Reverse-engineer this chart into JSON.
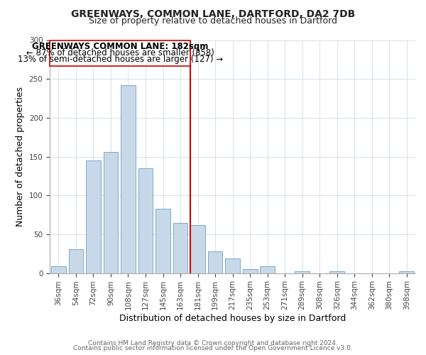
{
  "title": "GREENWAYS, COMMON LANE, DARTFORD, DA2 7DB",
  "subtitle": "Size of property relative to detached houses in Dartford",
  "xlabel": "Distribution of detached houses by size in Dartford",
  "ylabel": "Number of detached properties",
  "bar_color": "#c8d8e8",
  "bar_edge_color": "#7aaac8",
  "categories": [
    "36sqm",
    "54sqm",
    "72sqm",
    "90sqm",
    "108sqm",
    "127sqm",
    "145sqm",
    "163sqm",
    "181sqm",
    "199sqm",
    "217sqm",
    "235sqm",
    "253sqm",
    "271sqm",
    "289sqm",
    "308sqm",
    "326sqm",
    "344sqm",
    "362sqm",
    "380sqm",
    "398sqm"
  ],
  "values": [
    9,
    31,
    145,
    156,
    242,
    135,
    83,
    65,
    62,
    28,
    19,
    5,
    9,
    0,
    2,
    0,
    2,
    0,
    0,
    0,
    2
  ],
  "vline_color": "#cc0000",
  "annotation_title": "GREENWAYS COMMON LANE: 182sqm",
  "annotation_line1": "← 87% of detached houses are smaller (858)",
  "annotation_line2": "13% of semi-detached houses are larger (127) →",
  "annotation_box_color": "#ffffff",
  "annotation_box_edge_color": "#cc0000",
  "footer1": "Contains HM Land Registry data © Crown copyright and database right 2024.",
  "footer2": "Contains public sector information licensed under the Open Government Licence v3.0.",
  "ylim": [
    0,
    300
  ],
  "title_fontsize": 10,
  "subtitle_fontsize": 9,
  "annotation_fontsize": 8.5,
  "axis_label_fontsize": 9,
  "tick_fontsize": 7.5,
  "footer_fontsize": 6.5
}
